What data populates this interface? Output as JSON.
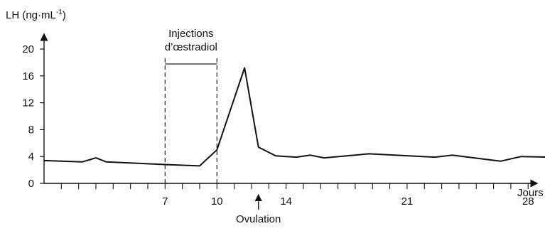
{
  "chart_data": {
    "type": "line",
    "ylabel": "LH (ng·mL",
    "ylabel_superscript": "-1",
    "ylabel_suffix": ")",
    "xlabel": "Jours",
    "ylim": [
      0,
      20
    ],
    "xlim": [
      0,
      30
    ],
    "y_ticks": [
      0,
      4,
      8,
      12,
      16,
      20
    ],
    "x_tick_labels": [
      7,
      10,
      14,
      21,
      28
    ],
    "grid": false,
    "series": [
      {
        "x": [
          0,
          2.2,
          3,
          3.6,
          7,
          9,
          10,
          11.6,
          12.4,
          13.4,
          14.6,
          15.4,
          16.2,
          18.8,
          22.6,
          23.6,
          26.4,
          27.6,
          29.1
        ],
        "y": [
          3.4,
          3.2,
          3.8,
          3.2,
          2.8,
          2.6,
          5.0,
          17.2,
          5.4,
          4.1,
          3.9,
          4.2,
          3.8,
          4.4,
          3.9,
          4.2,
          3.3,
          4.0,
          3.9
        ]
      }
    ],
    "injection_period": {
      "start": 7,
      "end": 10,
      "label_line1": "Injections",
      "label_line2": "d’œstradiol"
    },
    "ovulation": {
      "day": 12.4,
      "label": "Ovulation"
    }
  }
}
